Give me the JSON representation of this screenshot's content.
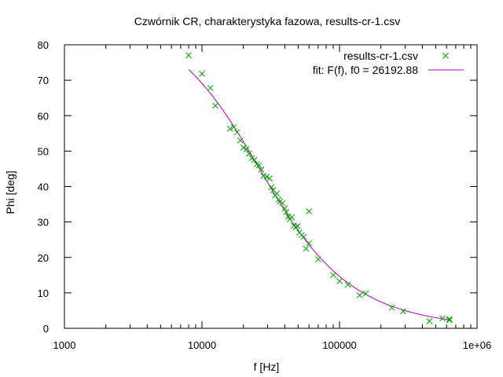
{
  "chart_data": {
    "type": "scatter",
    "title": "Czwórnik CR, charakterystyka fazowa, results-cr-1.csv",
    "xlabel": "f [Hz]",
    "ylabel": "Phi [deg]",
    "xscale": "log",
    "xlim": [
      1000,
      1000000
    ],
    "ylim": [
      0,
      80
    ],
    "x_ticks": [
      1000,
      10000,
      100000,
      1000000
    ],
    "x_tick_labels": [
      "1000",
      "10000",
      "100000",
      "1e+06"
    ],
    "y_ticks": [
      0,
      10,
      20,
      30,
      40,
      50,
      60,
      70,
      80
    ],
    "y_tick_labels": [
      "0",
      "10",
      "20",
      "30",
      "40",
      "50",
      "60",
      "70",
      "80"
    ],
    "grid": false,
    "legend_position": "top-right",
    "series": [
      {
        "name": "results-cr-1.csv",
        "kind": "points",
        "marker": "x",
        "color": "#00a000",
        "points": [
          [
            8000,
            77.0
          ],
          [
            10000,
            71.8
          ],
          [
            11500,
            67.8
          ],
          [
            12500,
            62.8
          ],
          [
            16000,
            56.3
          ],
          [
            17000,
            56.8
          ],
          [
            18000,
            55.3
          ],
          [
            19000,
            53.0
          ],
          [
            20000,
            51.0
          ],
          [
            21000,
            50.5
          ],
          [
            22000,
            49.3
          ],
          [
            23000,
            48.0
          ],
          [
            24000,
            47.5
          ],
          [
            25000,
            46.3
          ],
          [
            26000,
            46.0
          ],
          [
            27000,
            44.8
          ],
          [
            28000,
            43.0
          ],
          [
            29500,
            42.8
          ],
          [
            31000,
            42.3
          ],
          [
            32000,
            39.8
          ],
          [
            33000,
            39.0
          ],
          [
            34000,
            37.5
          ],
          [
            35000,
            38.0
          ],
          [
            36000,
            36.3
          ],
          [
            37000,
            35.8
          ],
          [
            38500,
            35.3
          ],
          [
            40000,
            33.8
          ],
          [
            41000,
            32.8
          ],
          [
            42500,
            31.5
          ],
          [
            43500,
            30.8
          ],
          [
            45000,
            31.3
          ],
          [
            46500,
            29.0
          ],
          [
            48000,
            28.5
          ],
          [
            49500,
            28.8
          ],
          [
            51000,
            27.0
          ],
          [
            53000,
            26.3
          ],
          [
            55000,
            25.8
          ],
          [
            57000,
            22.5
          ],
          [
            60000,
            24.0
          ],
          [
            60000,
            33.0
          ],
          [
            70000,
            19.5
          ],
          [
            90000,
            15.0
          ],
          [
            100000,
            13.3
          ],
          [
            115000,
            12.3
          ],
          [
            140000,
            9.3
          ],
          [
            155000,
            9.8
          ],
          [
            240000,
            5.8
          ],
          [
            290000,
            4.8
          ],
          [
            450000,
            2.0
          ],
          [
            560000,
            2.8
          ],
          [
            630000,
            2.3
          ],
          [
            630000,
            2.6
          ]
        ]
      },
      {
        "name": "fit: F(f), f0 = 26192.88",
        "kind": "line",
        "color": "#c000c0",
        "f0": 26192.88,
        "x_range": [
          8000,
          630000
        ]
      }
    ]
  }
}
